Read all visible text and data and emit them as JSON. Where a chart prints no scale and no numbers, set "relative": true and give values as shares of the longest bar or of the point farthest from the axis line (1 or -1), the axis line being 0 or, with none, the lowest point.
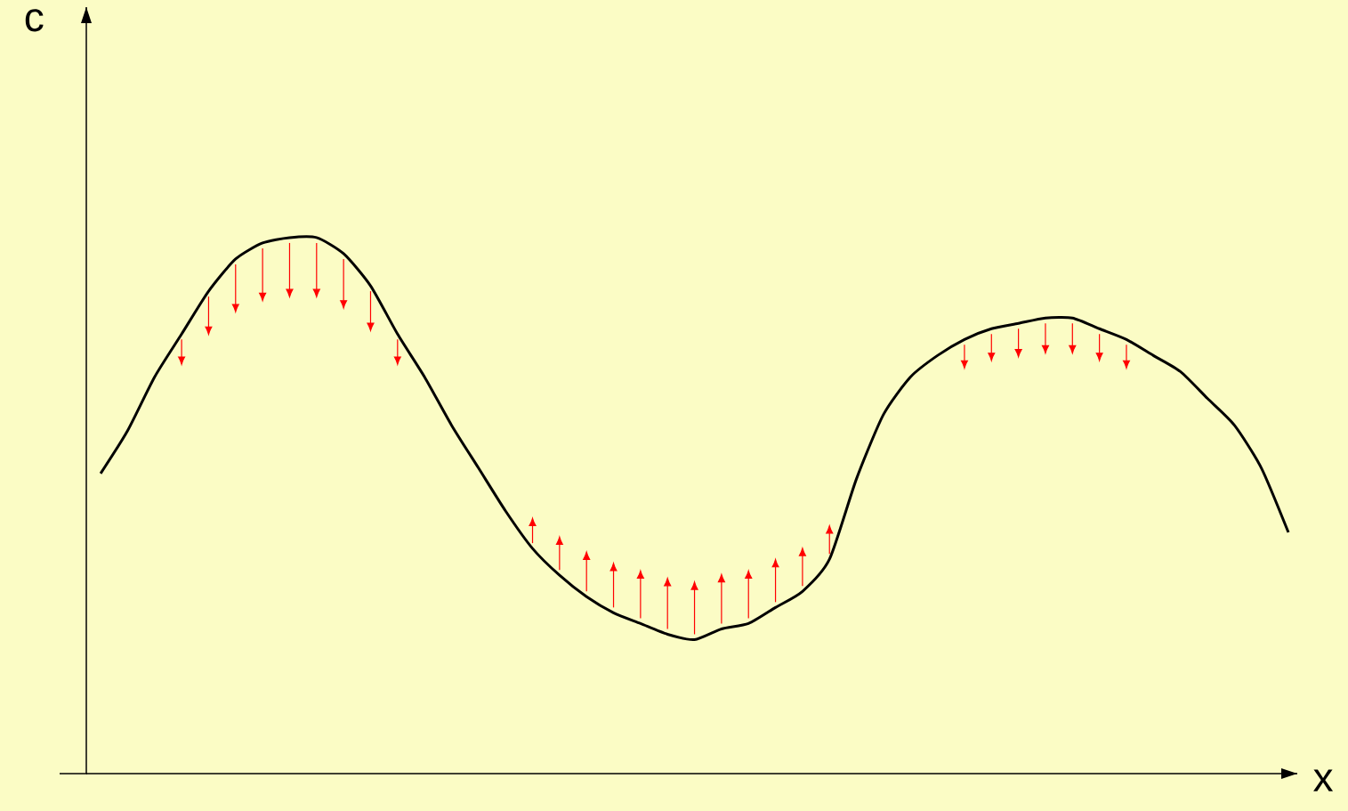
{
  "chart_data": {
    "type": "line",
    "relative": true,
    "xlabel": "x",
    "annotations": [
      "c"
    ],
    "categories": [
      null,
      null,
      null,
      null,
      null,
      null,
      null,
      null,
      null,
      null,
      null,
      null,
      null,
      null,
      null,
      null,
      null,
      null,
      null,
      null,
      null,
      null,
      null,
      null,
      null,
      null,
      null,
      null,
      null,
      null,
      null,
      null,
      null,
      null,
      null,
      null,
      null,
      null,
      null,
      null,
      null,
      null,
      null,
      null,
      null
    ],
    "series": [
      {
        "color": "#000000",
        "values": [
          0.56,
          0.64,
          0.74,
          0.82,
          0.9,
          0.96,
          0.99,
          1.0,
          1.0,
          0.97,
          0.91,
          0.82,
          0.74,
          0.65,
          0.57,
          0.49,
          0.42,
          0.37,
          0.33,
          0.3,
          0.28,
          0.26,
          0.25,
          0.27,
          0.28,
          0.31,
          0.34,
          0.4,
          0.55,
          0.67,
          0.74,
          0.78,
          0.81,
          0.83,
          0.84,
          0.85,
          0.85,
          0.83,
          0.81,
          0.78,
          0.75,
          0.7,
          0.65,
          0.57,
          0.45
        ]
      }
    ]
  }
}
